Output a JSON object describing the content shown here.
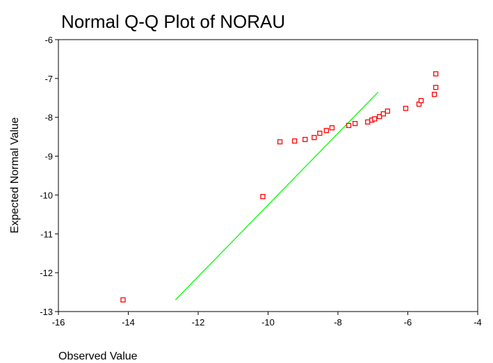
{
  "chart_data": {
    "type": "scatter",
    "title": "Normal Q-Q Plot of NORAU",
    "x_label": "Observed Value",
    "y_label": "Expected Normal Value",
    "x": [
      -14.15,
      -10.15,
      -9.66,
      -9.24,
      -8.94,
      -8.68,
      -8.52,
      -8.33,
      -8.17,
      -7.69,
      -7.51,
      -7.15,
      -7.03,
      -6.95,
      -6.81,
      -6.7,
      -6.58,
      -6.06,
      -5.68,
      -5.62,
      -5.24,
      -5.2,
      -5.2
    ],
    "values": [
      -12.7,
      -10.04,
      -8.63,
      -8.61,
      -8.57,
      -8.52,
      -8.41,
      -8.34,
      -8.27,
      -8.21,
      -8.16,
      -8.12,
      -8.07,
      -8.04,
      -7.98,
      -7.91,
      -7.84,
      -7.77,
      -7.66,
      -7.57,
      -7.41,
      -7.23,
      -6.88
    ],
    "color": "#ff0000",
    "reference_line": {
      "x": [
        -12.65,
        -6.85
      ],
      "values": [
        -12.7,
        -7.35
      ],
      "color": "#00ff00"
    },
    "xlim": [
      -16,
      -4
    ],
    "xticks": [
      -16,
      -14,
      -12,
      -10,
      -8,
      -6,
      -4
    ],
    "ylim": [
      -13,
      -6
    ],
    "yticks": [
      -13,
      -12,
      -11,
      -10,
      -9,
      -8,
      -7,
      -6
    ]
  }
}
